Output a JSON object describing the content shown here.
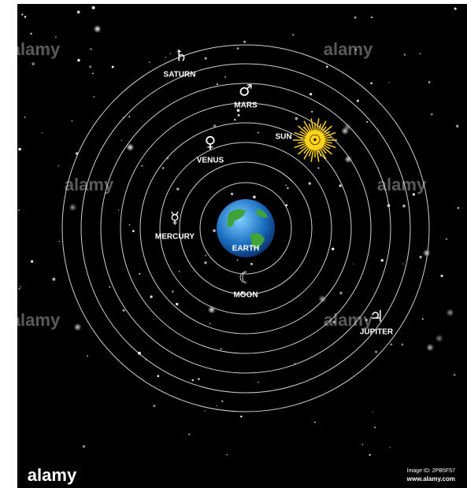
{
  "nodes": [
    {
      "label": "SATURN",
      "symbol": "♄"
    },
    {
      "label": "MARS",
      "symbol": "♂"
    },
    {
      "label": "SUN",
      "symbol": "☉"
    },
    {
      "label": "VENUS",
      "symbol": "♀"
    },
    {
      "label": "MERCURY",
      "symbol": "☿"
    },
    {
      "label": "EARTH"
    },
    {
      "label": "MOON",
      "symbol": "☾"
    },
    {
      "label": "JUPITER",
      "symbol": "♃"
    }
  ],
  "footer": {
    "logo": "alamy",
    "image_id": "Image ID: 2PB5F57",
    "url": "www.alamy.com"
  }
}
